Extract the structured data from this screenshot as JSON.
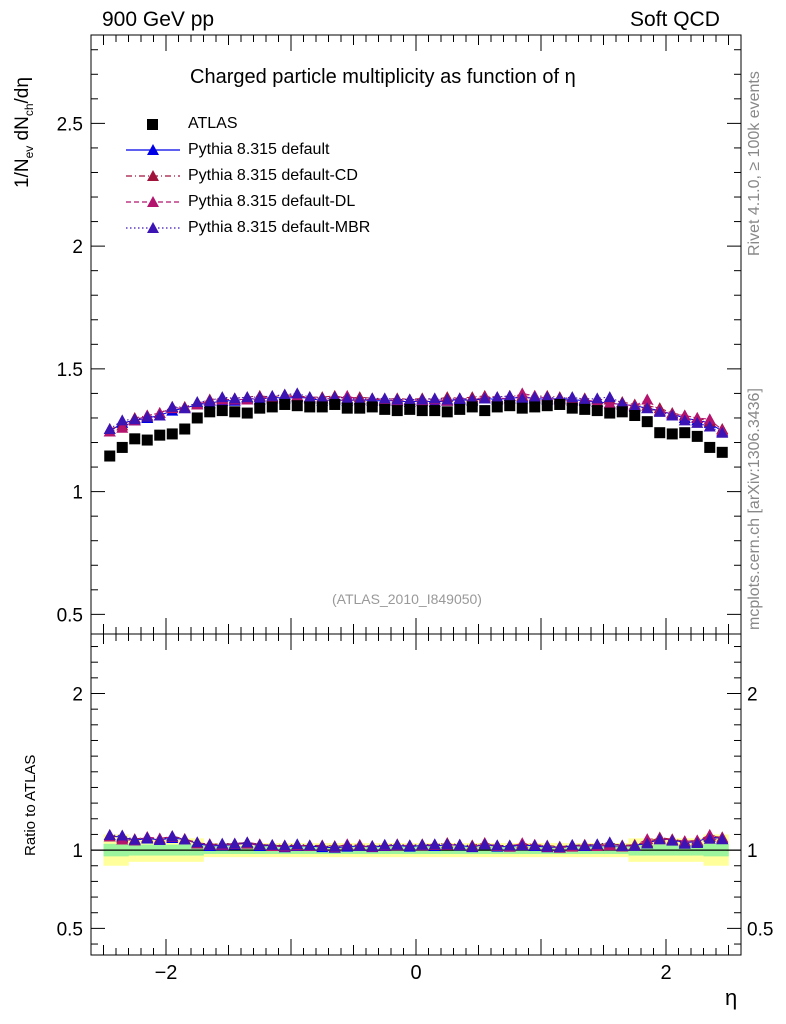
{
  "header": {
    "left": "900 GeV pp",
    "right": "Soft QCD"
  },
  "side_text": {
    "rivet": "Rivet 4.1.0, ≥ 100k events",
    "source": "mcplots.cern.ch [arXiv:1306.3436]"
  },
  "colors": {
    "atlas": "#000000",
    "default": "#0000e6",
    "cd": "#a0143c",
    "dl": "#b4146e",
    "mbr": "#3c14b4",
    "band_inner": "#9cf59c",
    "band_outer": "#ffff9c"
  },
  "chart_data": [
    {
      "type": "scatter",
      "panel": "main",
      "title": "Charged particle multiplicity as function of η",
      "ylabel": "1/N_ev dN_ch/dη",
      "xlabel": "η",
      "xlim": [
        -2.6,
        2.6
      ],
      "ylim": [
        0.42,
        2.86
      ],
      "yticks": [
        0.5,
        1,
        1.5,
        2,
        2.5
      ],
      "ytick_labels": [
        "0.5",
        "1",
        "1.5",
        "2",
        "2.5"
      ],
      "annotation": "(ATLAS_2010_I849050)",
      "x": [
        -2.45,
        -2.35,
        -2.25,
        -2.15,
        -2.05,
        -1.95,
        -1.85,
        -1.75,
        -1.65,
        -1.55,
        -1.45,
        -1.35,
        -1.25,
        -1.15,
        -1.05,
        -0.95,
        -0.85,
        -0.75,
        -0.65,
        -0.55,
        -0.45,
        -0.35,
        -0.25,
        -0.15,
        -0.05,
        0.05,
        0.15,
        0.25,
        0.35,
        0.45,
        0.55,
        0.65,
        0.75,
        0.85,
        0.95,
        1.05,
        1.15,
        1.25,
        1.35,
        1.45,
        1.55,
        1.65,
        1.75,
        1.85,
        1.95,
        2.05,
        2.15,
        2.25,
        2.35,
        2.45
      ],
      "series": [
        {
          "name": "ATLAS",
          "marker": "square",
          "values": [
            1.145,
            1.18,
            1.215,
            1.21,
            1.23,
            1.235,
            1.255,
            1.3,
            1.325,
            1.33,
            1.325,
            1.32,
            1.34,
            1.345,
            1.355,
            1.35,
            1.345,
            1.345,
            1.355,
            1.34,
            1.34,
            1.345,
            1.335,
            1.33,
            1.335,
            1.33,
            1.33,
            1.325,
            1.335,
            1.345,
            1.33,
            1.345,
            1.35,
            1.34,
            1.345,
            1.35,
            1.355,
            1.34,
            1.335,
            1.33,
            1.32,
            1.325,
            1.31,
            1.285,
            1.24,
            1.235,
            1.24,
            1.225,
            1.18,
            1.16
          ]
        },
        {
          "name": "Pythia 8.315 default",
          "marker": "triangle",
          "line": "solid",
          "values": [
            1.245,
            1.28,
            1.29,
            1.3,
            1.31,
            1.33,
            1.34,
            1.355,
            1.36,
            1.37,
            1.37,
            1.38,
            1.375,
            1.385,
            1.38,
            1.385,
            1.38,
            1.37,
            1.375,
            1.37,
            1.375,
            1.37,
            1.37,
            1.37,
            1.365,
            1.37,
            1.365,
            1.37,
            1.375,
            1.37,
            1.38,
            1.375,
            1.38,
            1.385,
            1.38,
            1.375,
            1.38,
            1.375,
            1.37,
            1.365,
            1.36,
            1.355,
            1.35,
            1.34,
            1.33,
            1.315,
            1.3,
            1.29,
            1.28,
            1.245
          ]
        },
        {
          "name": "Pythia 8.315 default-CD",
          "marker": "triangle",
          "line": "dashdot",
          "values": [
            1.255,
            1.27,
            1.3,
            1.31,
            1.32,
            1.345,
            1.345,
            1.36,
            1.375,
            1.38,
            1.38,
            1.385,
            1.39,
            1.385,
            1.395,
            1.39,
            1.385,
            1.385,
            1.39,
            1.38,
            1.385,
            1.38,
            1.375,
            1.38,
            1.375,
            1.38,
            1.375,
            1.385,
            1.38,
            1.385,
            1.39,
            1.385,
            1.39,
            1.39,
            1.39,
            1.39,
            1.385,
            1.38,
            1.38,
            1.375,
            1.375,
            1.365,
            1.355,
            1.35,
            1.34,
            1.32,
            1.31,
            1.3,
            1.285,
            1.255
          ]
        },
        {
          "name": "Pythia 8.315 default-DL",
          "marker": "triangle",
          "line": "dashed",
          "values": [
            1.245,
            1.26,
            1.29,
            1.31,
            1.32,
            1.34,
            1.34,
            1.355,
            1.37,
            1.375,
            1.375,
            1.375,
            1.385,
            1.38,
            1.385,
            1.39,
            1.38,
            1.38,
            1.38,
            1.39,
            1.375,
            1.375,
            1.375,
            1.37,
            1.375,
            1.37,
            1.375,
            1.37,
            1.38,
            1.375,
            1.385,
            1.38,
            1.38,
            1.4,
            1.39,
            1.38,
            1.375,
            1.37,
            1.375,
            1.365,
            1.36,
            1.355,
            1.35,
            1.375,
            1.33,
            1.315,
            1.31,
            1.3,
            1.295,
            1.25
          ]
        },
        {
          "name": "Pythia 8.315 default-MBR",
          "marker": "triangle",
          "line": "dotted",
          "values": [
            1.255,
            1.29,
            1.295,
            1.305,
            1.31,
            1.345,
            1.34,
            1.365,
            1.37,
            1.385,
            1.38,
            1.385,
            1.385,
            1.39,
            1.395,
            1.4,
            1.385,
            1.38,
            1.385,
            1.38,
            1.375,
            1.38,
            1.38,
            1.375,
            1.375,
            1.375,
            1.38,
            1.375,
            1.38,
            1.375,
            1.38,
            1.385,
            1.39,
            1.38,
            1.385,
            1.385,
            1.38,
            1.385,
            1.375,
            1.38,
            1.385,
            1.36,
            1.345,
            1.34,
            1.325,
            1.31,
            1.29,
            1.28,
            1.265,
            1.24
          ]
        }
      ]
    },
    {
      "type": "scatter",
      "panel": "ratio",
      "ylabel": "Ratio to ATLAS",
      "xlabel": "η",
      "xlim": [
        -2.6,
        2.6
      ],
      "ylim": [
        0.33,
        2.38
      ],
      "yticks": [
        0.5,
        1,
        2
      ],
      "ytick_labels": [
        "0.5",
        "1",
        "2"
      ],
      "xticks": [
        -2,
        0,
        2
      ],
      "xtick_labels": [
        "−2",
        "0",
        "2"
      ],
      "reference_line": 1.0,
      "uncertainty_bands": {
        "inner_half_width": [
          0.04,
          0.04,
          0.035,
          0.035,
          0.035,
          0.035,
          0.035,
          0.035,
          0.025,
          0.025,
          0.025,
          0.025,
          0.025,
          0.025,
          0.025,
          0.025,
          0.025,
          0.025,
          0.025,
          0.025,
          0.025,
          0.025,
          0.025,
          0.025,
          0.025,
          0.025,
          0.025,
          0.025,
          0.025,
          0.025,
          0.025,
          0.025,
          0.025,
          0.025,
          0.025,
          0.025,
          0.025,
          0.025,
          0.025,
          0.025,
          0.025,
          0.025,
          0.035,
          0.035,
          0.035,
          0.035,
          0.035,
          0.035,
          0.04,
          0.04
        ],
        "outer_half_width": [
          0.1,
          0.1,
          0.075,
          0.075,
          0.075,
          0.075,
          0.075,
          0.075,
          0.045,
          0.045,
          0.045,
          0.045,
          0.045,
          0.045,
          0.045,
          0.045,
          0.045,
          0.045,
          0.045,
          0.045,
          0.045,
          0.045,
          0.045,
          0.045,
          0.045,
          0.045,
          0.045,
          0.045,
          0.045,
          0.045,
          0.045,
          0.045,
          0.045,
          0.045,
          0.045,
          0.045,
          0.045,
          0.045,
          0.045,
          0.045,
          0.045,
          0.045,
          0.075,
          0.075,
          0.075,
          0.075,
          0.075,
          0.075,
          0.1,
          0.1
        ]
      }
    }
  ]
}
